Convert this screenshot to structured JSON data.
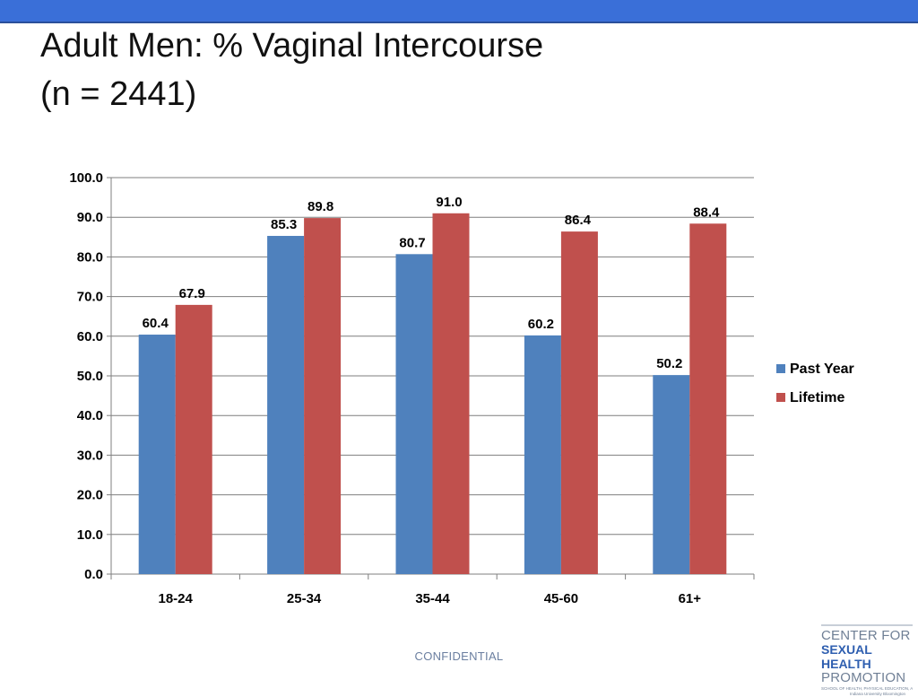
{
  "slide": {
    "title_line1": "Adult Men: % Vaginal Intercourse",
    "title_line2": "(n = 2441)",
    "footer": "CONFIDENTIAL"
  },
  "logo": {
    "line1": "CENTER FOR",
    "line2": "SEXUAL HEALTH",
    "line3": "PROMOTION",
    "line4": "School of Health, Physical Education, and Recreation",
    "line5": "Indiana University Bloomington"
  },
  "colors": {
    "topbar": "#3a6fd8",
    "past_year": "#4f81bd",
    "lifetime": "#c0504d"
  },
  "chart_data": {
    "type": "bar",
    "title": "",
    "xlabel": "",
    "ylabel": "",
    "categories": [
      "18-24",
      "25-34",
      "35-44",
      "45-60",
      "61+"
    ],
    "series": [
      {
        "name": "Past Year",
        "values": [
          60.4,
          85.3,
          80.7,
          60.2,
          50.2
        ],
        "labels": [
          "60.4",
          "85.3",
          "80.7",
          "60.2",
          "50.2"
        ],
        "color": "#4f81bd"
      },
      {
        "name": "Lifetime",
        "values": [
          67.9,
          89.8,
          91.0,
          86.4,
          88.4
        ],
        "labels": [
          "67.9",
          "89.8",
          "91.0",
          "86.4",
          "88.4"
        ],
        "color": "#c0504d"
      }
    ],
    "ylim": [
      0,
      100
    ],
    "yticks": [
      0,
      10,
      20,
      30,
      40,
      50,
      60,
      70,
      80,
      90,
      100
    ],
    "ytick_labels": [
      "0.0",
      "10.0",
      "20.0",
      "30.0",
      "40.0",
      "50.0",
      "60.0",
      "70.0",
      "80.0",
      "90.0",
      "100.0"
    ],
    "grid": true,
    "legend_position": "right"
  }
}
